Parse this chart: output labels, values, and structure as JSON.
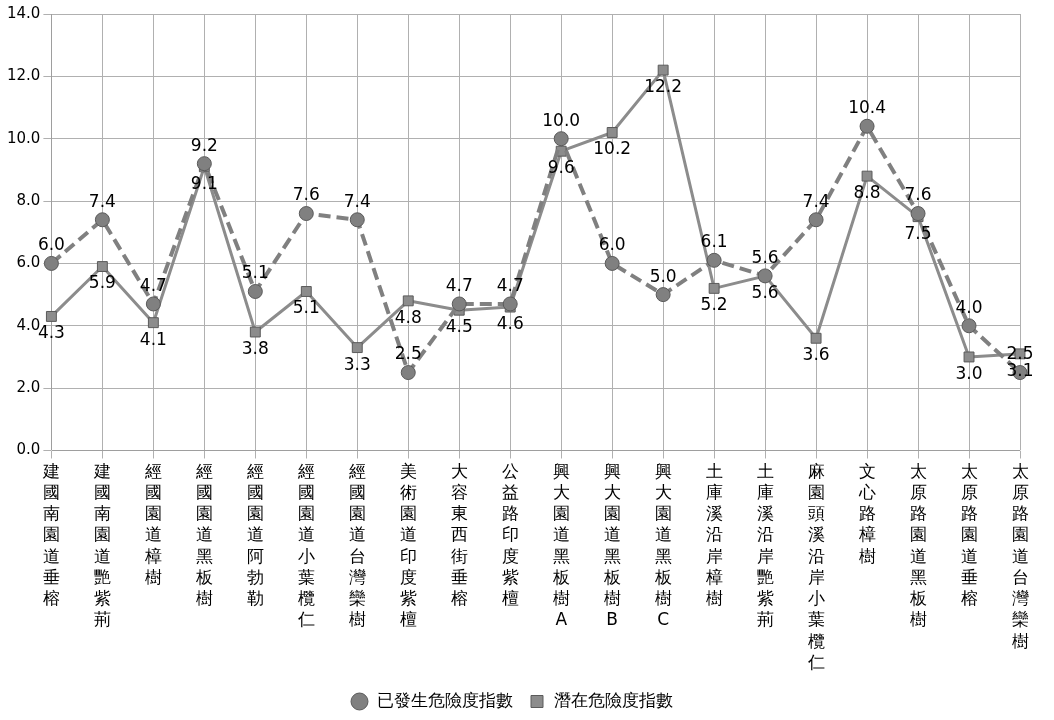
{
  "chart_data": {
    "type": "line",
    "categories": [
      "建國南園道垂榕",
      "建國南園道艷紫荊",
      "經國園道樟樹",
      "經國園道黑板樹",
      "經國園道阿勃勒",
      "經國園道小葉欖仁",
      "經國園道台灣欒樹",
      "美術園道印度紫檀",
      "大容東西街垂榕",
      "公益路印度紫檀",
      "興大園道黑板樹A",
      "興大園道黑板樹B",
      "興大園道黑板樹C",
      "土庫溪沿岸樟樹",
      "土庫溪沿岸艷紫荊",
      "麻園頭溪沿岸小葉欖仁",
      "文心路樟樹",
      "太原路園道黑板樹",
      "太原路園道垂榕",
      "太原路園道台灣欒樹"
    ],
    "series": [
      {
        "name": "已發生危險度指數",
        "color": "#808080",
        "marker": "circle",
        "line_style": "dashed",
        "values": [
          6.0,
          7.4,
          4.7,
          9.2,
          5.1,
          7.6,
          7.4,
          2.5,
          4.7,
          4.7,
          10.0,
          6.0,
          5.0,
          6.1,
          5.6,
          7.4,
          10.4,
          7.6,
          4.0,
          2.5
        ],
        "value_labels": [
          "6.0",
          "7.4",
          "4.7",
          "9.2",
          "5.1",
          "7.6",
          "7.4",
          "2.5",
          "4.7",
          "4.7",
          "10.0",
          "6.0",
          "5.0",
          "6.1",
          "5.6",
          "7.4",
          "10.4",
          "7.6",
          "4.0",
          "2.5"
        ]
      },
      {
        "name": "潛在危險度指數",
        "color": "#8c8c8c",
        "marker": "square",
        "line_style": "solid",
        "values": [
          4.3,
          5.9,
          4.1,
          9.1,
          3.8,
          5.1,
          3.3,
          4.8,
          4.5,
          4.6,
          9.6,
          10.2,
          12.2,
          5.2,
          5.6,
          3.6,
          8.8,
          7.5,
          3.0,
          3.1
        ],
        "value_labels": [
          "4.3",
          "5.9",
          "4.1",
          "9.1",
          "3.8",
          "5.1",
          "3.3",
          "4.8",
          "4.5",
          "4.6",
          "9.6",
          "10.2",
          "12.2",
          "5.2",
          "5.6",
          "3.6",
          "8.8",
          "7.5",
          "3.0",
          "3.1"
        ]
      }
    ],
    "ylim": [
      0,
      14
    ],
    "yticks": [
      {
        "value": 0,
        "label": "0.0"
      },
      {
        "value": 2,
        "label": "2.0"
      },
      {
        "value": 4,
        "label": "4.0"
      },
      {
        "value": 6,
        "label": "6.0"
      },
      {
        "value": 8,
        "label": "8.0"
      },
      {
        "value": 10,
        "label": "10.0"
      },
      {
        "value": 12,
        "label": "12.0"
      },
      {
        "value": 14,
        "label": "14.0"
      }
    ],
    "grid": true,
    "legend": "bottom"
  }
}
